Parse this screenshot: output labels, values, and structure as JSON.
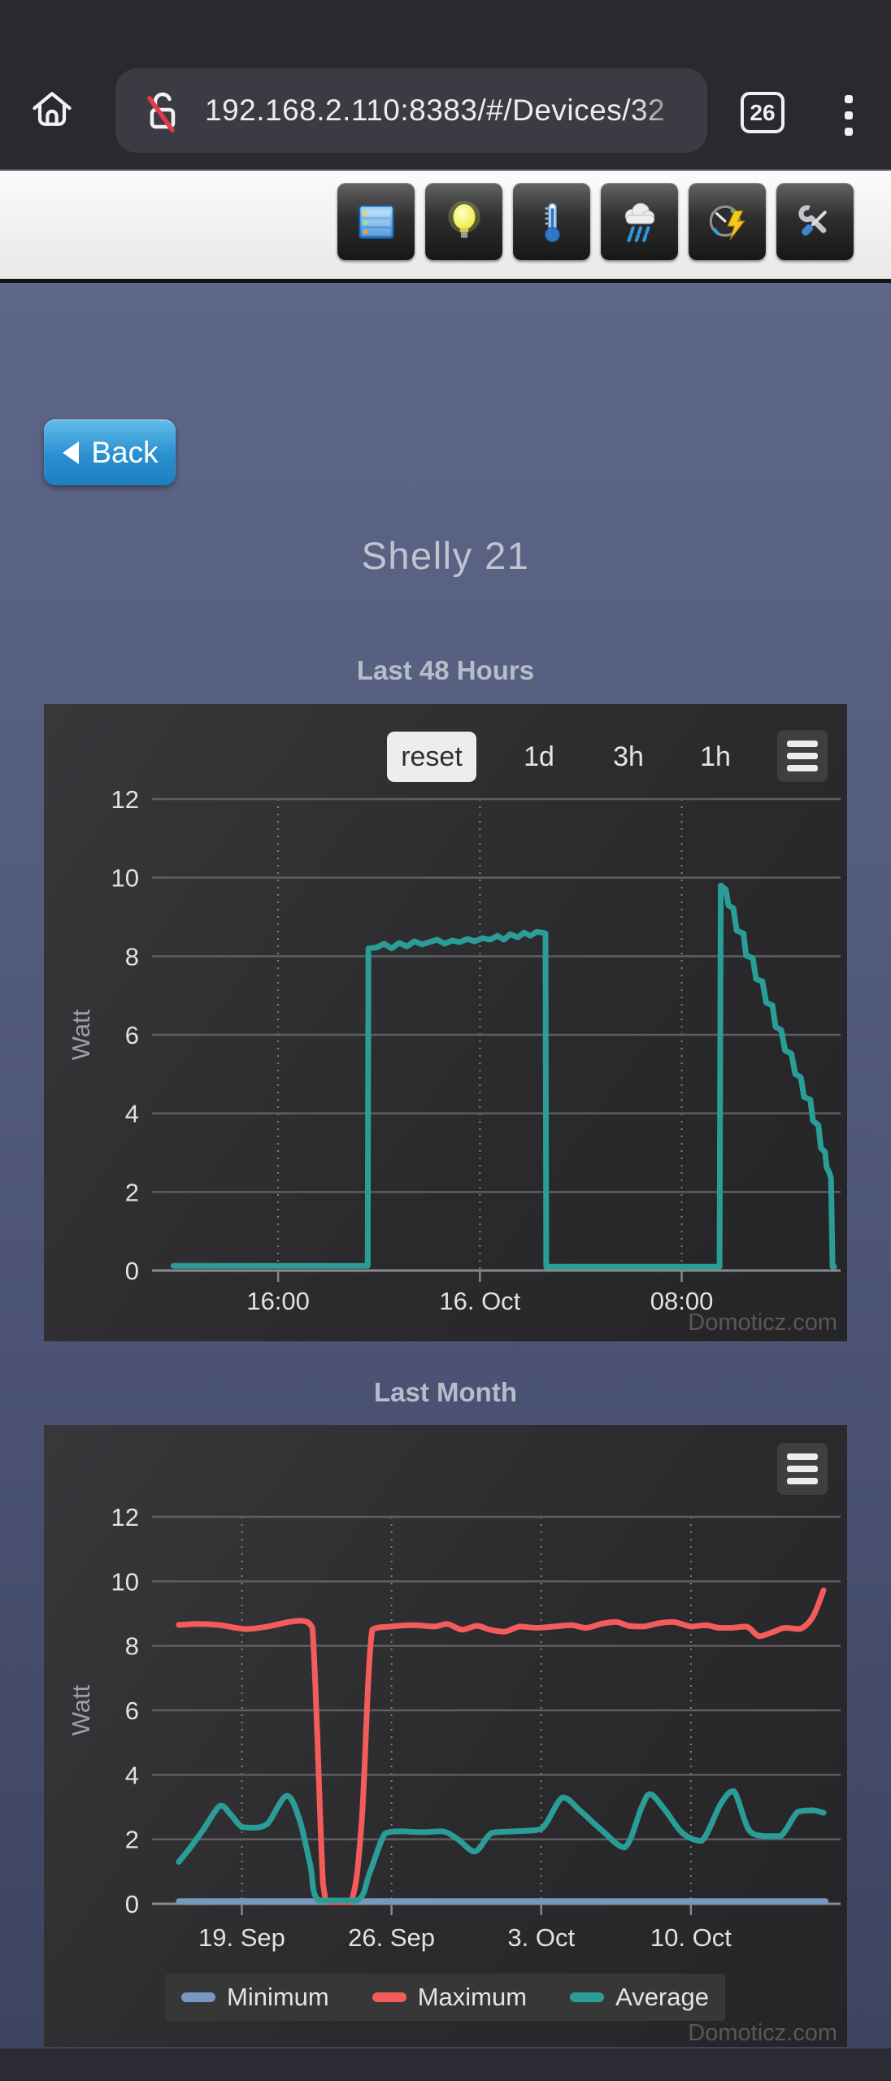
{
  "browser": {
    "url": "192.168.2.110:8383/#/Devices/32",
    "tab_count": "26"
  },
  "toolbar": {
    "buttons": [
      {
        "icon": "dashboard-icon"
      },
      {
        "icon": "light-switches-icon"
      },
      {
        "icon": "temperature-icon"
      },
      {
        "icon": "weather-icon"
      },
      {
        "icon": "utility-meter-icon"
      },
      {
        "icon": "setup-tools-icon"
      }
    ]
  },
  "content": {
    "back_label": "Back",
    "device_title": "Shelly 21"
  },
  "charts": [
    {
      "title": "Last 48 Hours",
      "range_buttons": [
        "reset",
        "1d",
        "3h",
        "1h"
      ],
      "watermark": "Domoticz.com",
      "chart_data": {
        "type": "line",
        "ylabel": "Watt",
        "ylim": [
          0,
          12
        ],
        "yticks": [
          0,
          2,
          4,
          6,
          8,
          10,
          12
        ],
        "xlim": [
          0,
          27.3
        ],
        "xticks": [
          {
            "pos": 5,
            "label": "16:00"
          },
          {
            "pos": 13,
            "label": "16. Oct"
          },
          {
            "pos": 21,
            "label": "08:00"
          }
        ],
        "grid": true,
        "legend_position": "none",
        "series": [
          {
            "name": "Watt",
            "color": "#2a9d96",
            "smooth": false,
            "points": [
              [
                0.85,
                0.12
              ],
              [
                8.55,
                0.12
              ],
              [
                8.58,
                8.2
              ],
              [
                8.9,
                8.22
              ],
              [
                9.2,
                8.32
              ],
              [
                9.5,
                8.2
              ],
              [
                9.8,
                8.34
              ],
              [
                10.1,
                8.25
              ],
              [
                10.4,
                8.38
              ],
              [
                10.7,
                8.3
              ],
              [
                11.0,
                8.36
              ],
              [
                11.3,
                8.42
              ],
              [
                11.6,
                8.32
              ],
              [
                11.9,
                8.4
              ],
              [
                12.2,
                8.36
              ],
              [
                12.5,
                8.44
              ],
              [
                12.8,
                8.38
              ],
              [
                13.1,
                8.46
              ],
              [
                13.4,
                8.42
              ],
              [
                13.7,
                8.52
              ],
              [
                13.95,
                8.42
              ],
              [
                14.2,
                8.56
              ],
              [
                14.5,
                8.48
              ],
              [
                14.75,
                8.6
              ],
              [
                15.0,
                8.52
              ],
              [
                15.25,
                8.62
              ],
              [
                15.5,
                8.6
              ],
              [
                15.6,
                8.58
              ],
              [
                15.63,
                0.1
              ],
              [
                22.5,
                0.1
              ],
              [
                22.55,
                9.8
              ],
              [
                22.75,
                9.7
              ],
              [
                22.85,
                9.3
              ],
              [
                23.05,
                9.22
              ],
              [
                23.18,
                8.65
              ],
              [
                23.45,
                8.58
              ],
              [
                23.55,
                8.02
              ],
              [
                23.82,
                7.95
              ],
              [
                23.95,
                7.42
              ],
              [
                24.2,
                7.36
              ],
              [
                24.35,
                6.82
              ],
              [
                24.6,
                6.75
              ],
              [
                24.72,
                6.2
              ],
              [
                24.95,
                6.12
              ],
              [
                25.1,
                5.6
              ],
              [
                25.35,
                5.52
              ],
              [
                25.5,
                5.0
              ],
              [
                25.72,
                4.92
              ],
              [
                25.85,
                4.42
              ],
              [
                26.1,
                4.35
              ],
              [
                26.2,
                3.82
              ],
              [
                26.42,
                3.7
              ],
              [
                26.52,
                3.12
              ],
              [
                26.68,
                3.02
              ],
              [
                26.75,
                2.62
              ],
              [
                26.85,
                2.5
              ],
              [
                26.92,
                2.35
              ],
              [
                26.98,
                0.1
              ],
              [
                27.05,
                0.1
              ]
            ]
          }
        ]
      }
    },
    {
      "title": "Last Month",
      "watermark": "Domoticz.com",
      "chart_data": {
        "type": "line",
        "ylabel": "Watt",
        "ylim": [
          0,
          12
        ],
        "yticks": [
          0,
          2,
          4,
          6,
          8,
          10,
          12
        ],
        "xlim": [
          0,
          32.2
        ],
        "xticks": [
          {
            "pos": 4.2,
            "label": "19. Sep"
          },
          {
            "pos": 11.2,
            "label": "26. Sep"
          },
          {
            "pos": 18.2,
            "label": "3. Oct"
          },
          {
            "pos": 25.2,
            "label": "10. Oct"
          }
        ],
        "grid": true,
        "legend_position": "bottom",
        "series": [
          {
            "name": "Minimum",
            "color": "#7798bf",
            "smooth": false,
            "points": [
              [
                1.25,
                0.08
              ],
              [
                31.5,
                0.08
              ]
            ]
          },
          {
            "name": "Maximum",
            "color": "#f45b5b",
            "smooth": true,
            "points": [
              [
                1.25,
                8.65
              ],
              [
                2.2,
                8.68
              ],
              [
                3.2,
                8.64
              ],
              [
                4.4,
                8.52
              ],
              [
                5.4,
                8.6
              ],
              [
                6.4,
                8.74
              ],
              [
                7.0,
                8.78
              ],
              [
                7.5,
                8.55
              ],
              [
                8.0,
                0.6
              ],
              [
                8.3,
                0.05
              ],
              [
                9.3,
                0.05
              ],
              [
                9.8,
                2.5
              ],
              [
                10.3,
                8.5
              ],
              [
                11.2,
                8.6
              ],
              [
                12.2,
                8.64
              ],
              [
                13.2,
                8.6
              ],
              [
                13.8,
                8.68
              ],
              [
                14.5,
                8.5
              ],
              [
                15.2,
                8.62
              ],
              [
                15.8,
                8.5
              ],
              [
                16.5,
                8.44
              ],
              [
                17.2,
                8.6
              ],
              [
                18.0,
                8.56
              ],
              [
                18.8,
                8.6
              ],
              [
                19.6,
                8.64
              ],
              [
                20.3,
                8.56
              ],
              [
                21.0,
                8.68
              ],
              [
                21.7,
                8.74
              ],
              [
                22.3,
                8.62
              ],
              [
                23.0,
                8.6
              ],
              [
                23.7,
                8.7
              ],
              [
                24.4,
                8.74
              ],
              [
                25.2,
                8.6
              ],
              [
                25.9,
                8.64
              ],
              [
                26.5,
                8.56
              ],
              [
                27.1,
                8.56
              ],
              [
                27.8,
                8.6
              ],
              [
                28.4,
                8.3
              ],
              [
                29.0,
                8.42
              ],
              [
                29.6,
                8.56
              ],
              [
                30.3,
                8.52
              ],
              [
                30.9,
                8.9
              ],
              [
                31.4,
                9.72
              ]
            ]
          },
          {
            "name": "Average",
            "color": "#2a9d96",
            "smooth": true,
            "points": [
              [
                1.25,
                1.3
              ],
              [
                1.8,
                1.75
              ],
              [
                2.4,
                2.3
              ],
              [
                3.2,
                3.05
              ],
              [
                3.7,
                2.75
              ],
              [
                4.2,
                2.38
              ],
              [
                4.8,
                2.36
              ],
              [
                5.4,
                2.48
              ],
              [
                6.3,
                3.35
              ],
              [
                6.9,
                2.6
              ],
              [
                7.4,
                1.2
              ],
              [
                7.8,
                0.1
              ],
              [
                9.6,
                0.1
              ],
              [
                10.2,
                1.0
              ],
              [
                10.9,
                2.18
              ],
              [
                11.6,
                2.25
              ],
              [
                12.6,
                2.22
              ],
              [
                13.6,
                2.25
              ],
              [
                14.3,
                2.0
              ],
              [
                15.1,
                1.62
              ],
              [
                15.9,
                2.2
              ],
              [
                17.0,
                2.25
              ],
              [
                18.2,
                2.32
              ],
              [
                19.2,
                3.3
              ],
              [
                20.0,
                2.9
              ],
              [
                21.0,
                2.3
              ],
              [
                22.1,
                1.75
              ],
              [
                22.9,
                3.0
              ],
              [
                23.3,
                3.4
              ],
              [
                24.0,
                2.9
              ],
              [
                24.8,
                2.2
              ],
              [
                25.7,
                1.95
              ],
              [
                26.6,
                3.1
              ],
              [
                27.2,
                3.5
              ],
              [
                27.9,
                2.3
              ],
              [
                28.6,
                2.1
              ],
              [
                29.4,
                2.1
              ],
              [
                30.2,
                2.85
              ],
              [
                30.9,
                2.9
              ],
              [
                31.4,
                2.82
              ]
            ]
          }
        ]
      }
    }
  ]
}
